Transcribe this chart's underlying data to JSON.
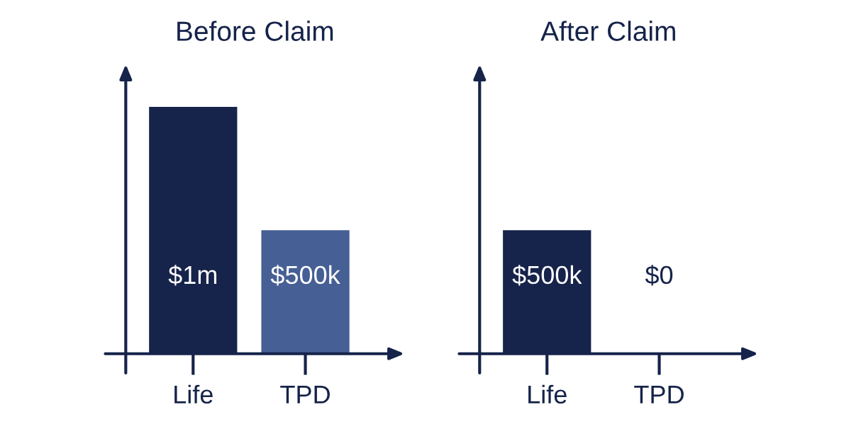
{
  "chart_data": [
    {
      "type": "bar",
      "title": "Before Claim",
      "categories": [
        "Life",
        "TPD"
      ],
      "values": [
        1000000,
        500000
      ],
      "colors": [
        "#16234a",
        "#465f94"
      ],
      "value_labels": [
        "$1m",
        "$500k"
      ],
      "grid": false,
      "legend": false,
      "tick_labels": "x"
    },
    {
      "type": "bar",
      "title": "After Claim",
      "categories": [
        "Life",
        "TPD"
      ],
      "values": [
        500000,
        0
      ],
      "colors": [
        "#16234a",
        "#465f94"
      ],
      "value_labels": [
        "$500k",
        "$0"
      ],
      "grid": false,
      "legend": false,
      "tick_labels": "x"
    }
  ]
}
